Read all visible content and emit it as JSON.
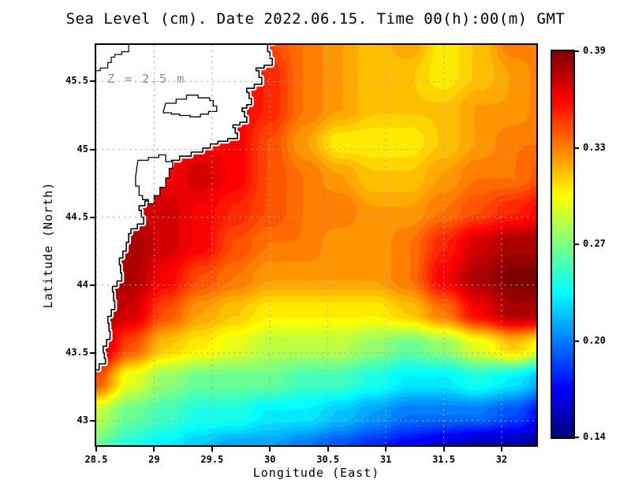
{
  "title": "Sea Level (cm). Date 2022.06.15. Time 00(h):00(m) GMT",
  "annotation": "Z = 2.5 m",
  "axes": {
    "x": {
      "label": "Longitude (East)",
      "min": 28.5,
      "max": 32.3,
      "ticks": [
        28.5,
        29,
        29.5,
        30,
        30.5,
        31,
        31.5,
        32
      ],
      "tick_labels": [
        "28.5",
        "29",
        "29.5",
        "30",
        "30.5",
        "31",
        "31.5",
        "32"
      ]
    },
    "y": {
      "label": "Latitude (North)",
      "min": 42.82,
      "max": 45.77,
      "ticks": [
        43,
        43.5,
        44,
        44.5,
        45,
        45.5
      ],
      "tick_labels": [
        "43",
        "43.5",
        "44",
        "44.5",
        "45",
        "45.5"
      ]
    }
  },
  "colorbar": {
    "min": 0.14,
    "max": 0.39,
    "tick_labels": [
      "0.39",
      "0.33",
      "0.27",
      "0.20",
      "0.14"
    ]
  },
  "colors": {
    "background": "#ffffff",
    "frame": "#000000",
    "grid": "#aaaaaa",
    "land": "#ffffff",
    "coastline": "#000000",
    "coast_halo": "#ffffff",
    "annotation_text": "#8f8f8f",
    "text": "#000000"
  },
  "colormap": {
    "name": "jet",
    "anchors": [
      {
        "t": 0.0,
        "c": "#00007f"
      },
      {
        "t": 0.125,
        "c": "#0000ff"
      },
      {
        "t": 0.375,
        "c": "#00ffff"
      },
      {
        "t": 0.625,
        "c": "#ffff00"
      },
      {
        "t": 0.875,
        "c": "#ff0000"
      },
      {
        "t": 1.0,
        "c": "#7f0000"
      }
    ]
  },
  "chart_data": {
    "type": "heatmap",
    "title": "Sea Level (cm). Date 2022.06.15. Time 00(h):00(m) GMT",
    "xlabel": "Longitude (East)",
    "ylabel": "Latitude (North)",
    "xlim": [
      28.5,
      32.3
    ],
    "ylim": [
      42.82,
      45.77
    ],
    "value_range": [
      0.14,
      0.39
    ],
    "grid_on": true,
    "legend_position": "right-colorbar",
    "lon": [
      28.5,
      28.8,
      29.1,
      29.4,
      29.7,
      30.0,
      30.3,
      30.6,
      30.9,
      31.2,
      31.5,
      31.8,
      32.1,
      32.4
    ],
    "lat": [
      45.8,
      45.55,
      45.3,
      45.05,
      44.8,
      44.55,
      44.3,
      44.05,
      43.8,
      43.55,
      43.3,
      43.05,
      42.8
    ],
    "values": [
      [
        0.33,
        0.33,
        0.33,
        0.34,
        0.35,
        0.34,
        0.33,
        0.32,
        0.31,
        0.32,
        0.3,
        0.31,
        0.33,
        0.33
      ],
      [
        0.33,
        0.33,
        0.33,
        0.34,
        0.36,
        0.35,
        0.33,
        0.32,
        0.31,
        0.31,
        0.3,
        0.31,
        0.32,
        0.33
      ],
      [
        0.34,
        0.34,
        0.34,
        0.35,
        0.36,
        0.35,
        0.33,
        0.32,
        0.31,
        0.31,
        0.31,
        0.32,
        0.32,
        0.33
      ],
      [
        0.35,
        0.35,
        0.35,
        0.36,
        0.36,
        0.34,
        0.32,
        0.3,
        0.3,
        0.3,
        0.31,
        0.32,
        0.33,
        0.33
      ],
      [
        0.36,
        0.36,
        0.36,
        0.37,
        0.36,
        0.34,
        0.33,
        0.32,
        0.31,
        0.31,
        0.32,
        0.33,
        0.33,
        0.34
      ],
      [
        0.37,
        0.37,
        0.37,
        0.36,
        0.35,
        0.34,
        0.33,
        0.33,
        0.32,
        0.32,
        0.33,
        0.34,
        0.35,
        0.36
      ],
      [
        0.38,
        0.38,
        0.37,
        0.36,
        0.34,
        0.33,
        0.33,
        0.32,
        0.32,
        0.33,
        0.35,
        0.37,
        0.38,
        0.38
      ],
      [
        0.38,
        0.38,
        0.36,
        0.34,
        0.33,
        0.32,
        0.32,
        0.32,
        0.32,
        0.33,
        0.36,
        0.38,
        0.39,
        0.39
      ],
      [
        0.38,
        0.37,
        0.34,
        0.32,
        0.31,
        0.3,
        0.3,
        0.3,
        0.3,
        0.31,
        0.33,
        0.36,
        0.38,
        0.38
      ],
      [
        0.38,
        0.34,
        0.31,
        0.3,
        0.29,
        0.28,
        0.28,
        0.28,
        0.27,
        0.26,
        0.27,
        0.29,
        0.31,
        0.29
      ],
      [
        0.34,
        0.29,
        0.27,
        0.26,
        0.26,
        0.26,
        0.25,
        0.25,
        0.24,
        0.23,
        0.23,
        0.24,
        0.23,
        0.21
      ],
      [
        0.28,
        0.26,
        0.25,
        0.24,
        0.24,
        0.23,
        0.23,
        0.22,
        0.21,
        0.2,
        0.2,
        0.2,
        0.19,
        0.17
      ],
      [
        0.26,
        0.24,
        0.23,
        0.22,
        0.21,
        0.21,
        0.2,
        0.19,
        0.18,
        0.17,
        0.16,
        0.15,
        0.15,
        0.14
      ]
    ],
    "coastline": [
      [
        30.08,
        45.84
      ],
      [
        29.98,
        45.72
      ],
      [
        30.02,
        45.62
      ],
      [
        29.88,
        45.58
      ],
      [
        29.93,
        45.48
      ],
      [
        29.8,
        45.42
      ],
      [
        29.84,
        45.33
      ],
      [
        29.76,
        45.28
      ],
      [
        29.8,
        45.2
      ],
      [
        29.68,
        45.16
      ],
      [
        29.72,
        45.08
      ],
      [
        29.55,
        45.04
      ],
      [
        29.42,
        44.98
      ],
      [
        29.22,
        44.92
      ],
      [
        29.08,
        44.84
      ],
      [
        29.0,
        44.74
      ],
      [
        28.94,
        44.7
      ],
      [
        28.97,
        44.62
      ],
      [
        28.87,
        44.55
      ],
      [
        28.91,
        44.45
      ],
      [
        28.8,
        44.38
      ],
      [
        28.76,
        44.25
      ],
      [
        28.7,
        44.15
      ],
      [
        28.72,
        44.03
      ],
      [
        28.64,
        43.95
      ],
      [
        28.66,
        43.82
      ],
      [
        28.6,
        43.72
      ],
      [
        28.62,
        43.6
      ],
      [
        28.56,
        43.5
      ],
      [
        28.58,
        43.42
      ],
      [
        28.47,
        43.33
      ]
    ],
    "lakes": [
      [
        [
          29.1,
          45.34
        ],
        [
          29.28,
          45.4
        ],
        [
          29.48,
          45.36
        ],
        [
          29.54,
          45.28
        ],
        [
          29.4,
          45.24
        ],
        [
          29.22,
          45.26
        ],
        [
          29.08,
          45.28
        ]
      ],
      [
        [
          28.86,
          44.92
        ],
        [
          29.04,
          44.96
        ],
        [
          29.16,
          44.86
        ],
        [
          29.1,
          44.72
        ],
        [
          29.0,
          44.6
        ],
        [
          28.9,
          44.66
        ],
        [
          28.84,
          44.8
        ]
      ]
    ],
    "rivers": [
      [
        [
          28.88,
          45.84
        ],
        [
          28.78,
          45.72
        ],
        [
          28.66,
          45.68
        ],
        [
          28.6,
          45.6
        ],
        [
          28.47,
          45.56
        ]
      ]
    ]
  }
}
